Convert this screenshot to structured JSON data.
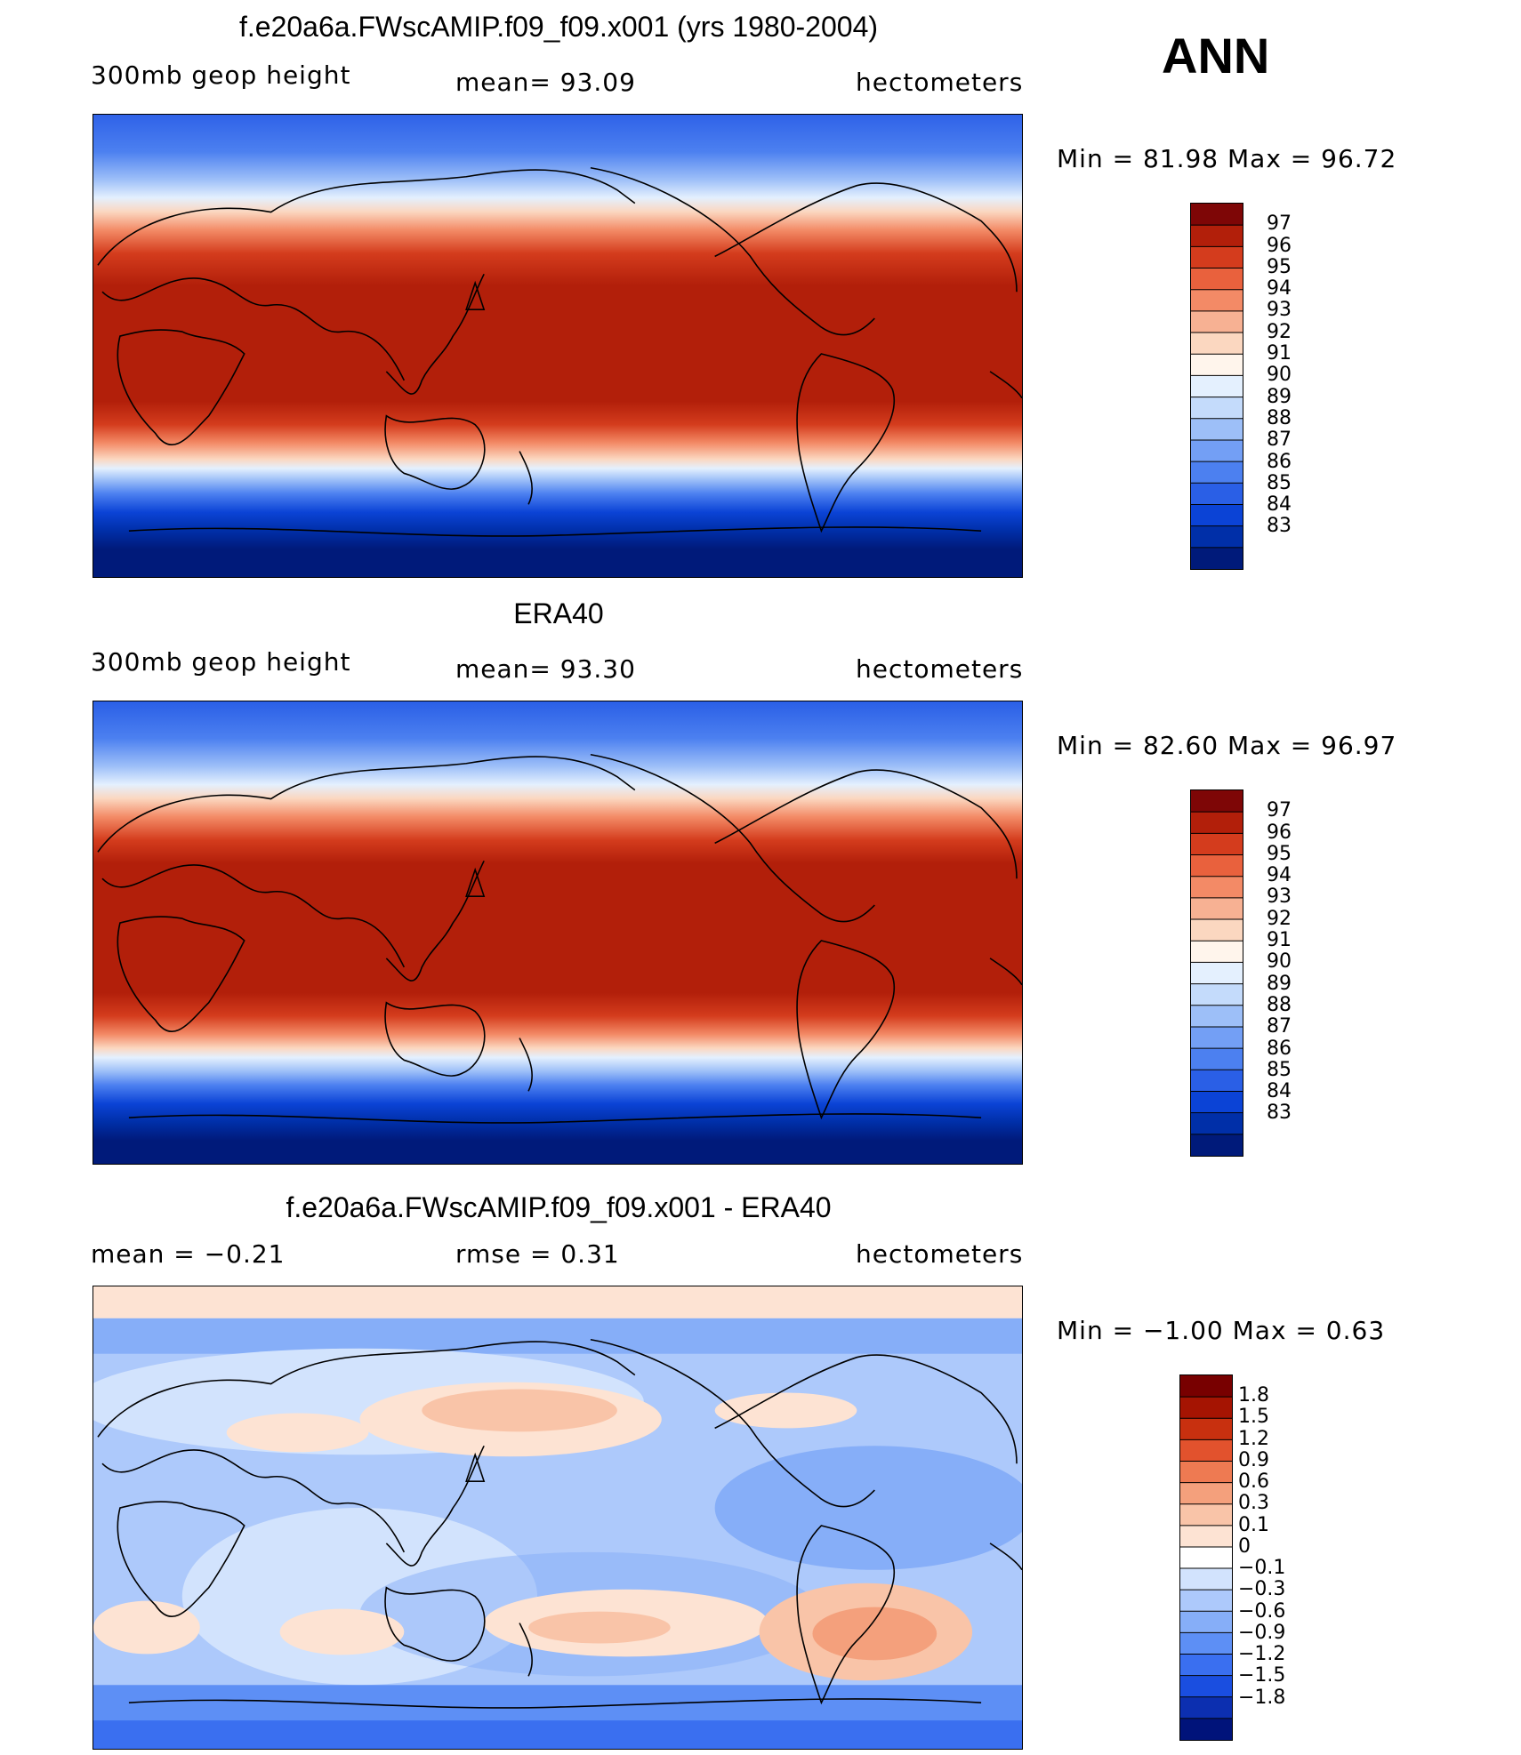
{
  "annotation": "ANN",
  "panels": [
    {
      "title": "f.e20a6a.FWscAMIP.f09_f09.x001 (yrs 1980-2004)",
      "left_label": "300mb  geop  height",
      "center_label": "mean=   93.09",
      "right_label": "hectometers",
      "minmax": "Min  =    81.98  Max  =    96.72",
      "colorbar": {
        "colors": [
          "#001a7a",
          "#002fa8",
          "#0b43d6",
          "#2a5fe6",
          "#4c80f0",
          "#739ff5",
          "#9dbff8",
          "#c4dbfb",
          "#e4f0fe",
          "#fff5ec",
          "#fbd7c0",
          "#f7b193",
          "#f38a66",
          "#e9613d",
          "#d43c1d",
          "#b21f0a",
          "#7e0606"
        ],
        "tick_labels": [
          "83",
          "84",
          "85",
          "86",
          "87",
          "88",
          "89",
          "90",
          "91",
          "92",
          "93",
          "94",
          "95",
          "96",
          "97"
        ]
      }
    },
    {
      "title": "ERA40",
      "left_label": "300mb  geop  height",
      "center_label": "mean=   93.30",
      "right_label": "hectometers",
      "minmax": "Min  =    82.60  Max  =    96.97",
      "colorbar": {
        "colors": [
          "#001a7a",
          "#002fa8",
          "#0b43d6",
          "#2a5fe6",
          "#4c80f0",
          "#739ff5",
          "#9dbff8",
          "#c4dbfb",
          "#e4f0fe",
          "#fff5ec",
          "#fbd7c0",
          "#f7b193",
          "#f38a66",
          "#e9613d",
          "#d43c1d",
          "#b21f0a",
          "#7e0606"
        ],
        "tick_labels": [
          "83",
          "84",
          "85",
          "86",
          "87",
          "88",
          "89",
          "90",
          "91",
          "92",
          "93",
          "94",
          "95",
          "96",
          "97"
        ]
      }
    },
    {
      "title": "f.e20a6a.FWscAMIP.f09_f09.x001 - ERA40",
      "left_label": "mean  =    −0.21",
      "center_label": "rmse  =     0.31",
      "right_label": "hectometers",
      "minmax": "Min  =    −1.00  Max  =      0.63",
      "colorbar": {
        "colors": [
          "#00137a",
          "#0c2fb0",
          "#1a4ee0",
          "#3a6ff0",
          "#5d8ff5",
          "#86aef8",
          "#adc9fb",
          "#d2e3fd",
          "#ffffff",
          "#fde3d3",
          "#f9c4a8",
          "#f4a07c",
          "#ee7a52",
          "#e2522d",
          "#c8300f",
          "#a51402",
          "#780000"
        ],
        "tick_labels": [
          "−1.8",
          "−1.5",
          "−1.2",
          "−0.9",
          "−0.6",
          "−0.3",
          "−0.1",
          "0",
          "0.1",
          "0.3",
          "0.6",
          "0.9",
          "1.2",
          "1.5",
          "1.8"
        ]
      }
    }
  ]
}
